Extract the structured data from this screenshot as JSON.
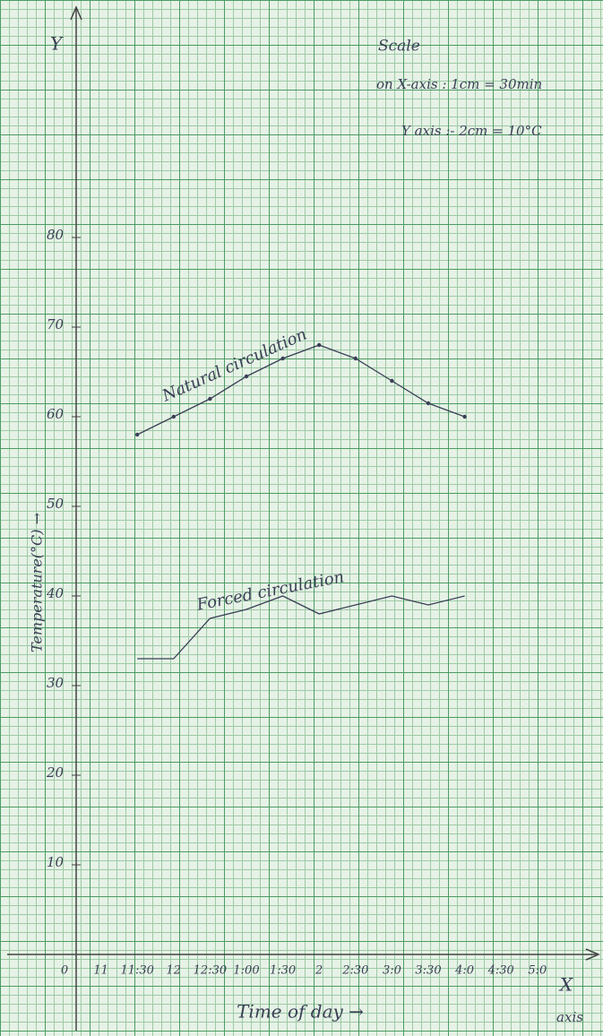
{
  "chart_data": {
    "type": "line",
    "title": "Scale",
    "scale_x": "on X-axis : 1cm = 30min",
    "scale_y": "Y axis :- 2cm = 10°C",
    "y_axis_letter": "Y",
    "x_axis_letter": "X",
    "x_axis_word": "axis",
    "xlabel": "Time of day →",
    "ylabel": "Temperature(°C) →",
    "categories": [
      "0",
      "11",
      "11:30",
      "12",
      "12:30",
      "1:00",
      "1:30",
      "2",
      "2:30",
      "3:0",
      "3:30",
      "4:0",
      "4:30",
      "5:0"
    ],
    "series": [
      {
        "name": "Natural circulation",
        "color": "#3a3f55",
        "values": [
          null,
          null,
          58,
          60,
          62,
          64.5,
          66.5,
          68,
          66.5,
          64,
          61.5,
          60,
          null,
          null
        ]
      },
      {
        "name": "Forced circulation",
        "color": "#3a3f55",
        "values": [
          null,
          null,
          33,
          33,
          37.5,
          38.5,
          40,
          38,
          39,
          40,
          39,
          40,
          null,
          null
        ]
      }
    ],
    "ylim": [
      0,
      105
    ],
    "yticks": [
      10,
      20,
      30,
      40,
      50,
      60,
      70,
      80
    ]
  }
}
